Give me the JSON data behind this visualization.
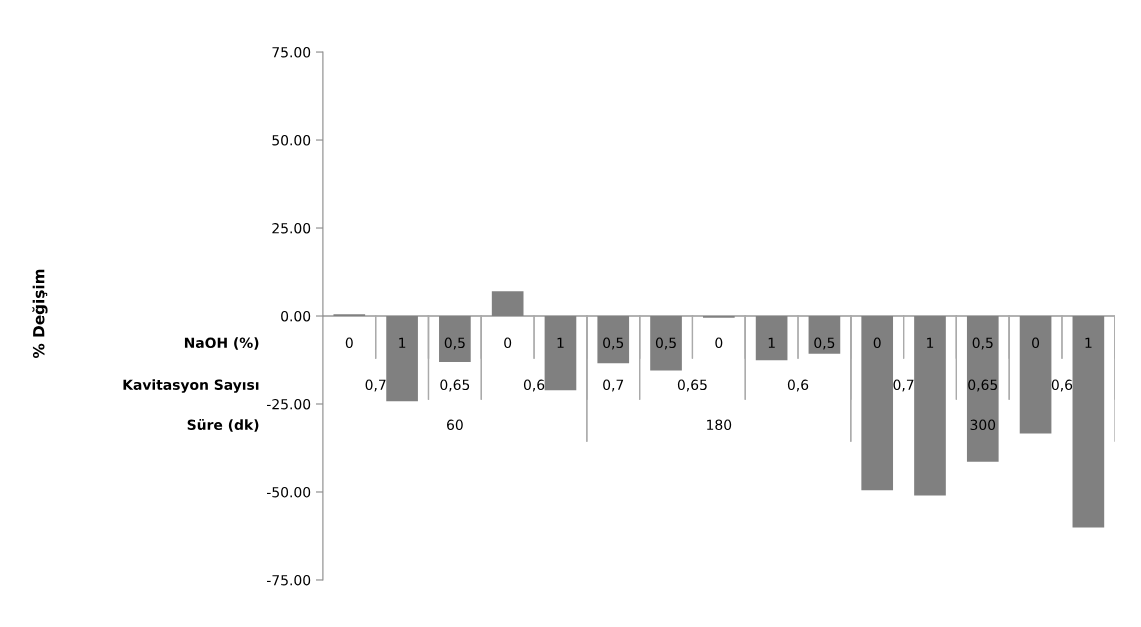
{
  "chart_data": {
    "type": "bar",
    "categories": [
      [
        "0",
        "0,7",
        "60"
      ],
      [
        "1",
        null,
        null
      ],
      [
        "0,5",
        "0,65",
        null
      ],
      [
        "0",
        "0,6",
        null
      ],
      [
        "1",
        null,
        null
      ],
      [
        "0,5",
        "0,7",
        "180"
      ],
      [
        "0,5",
        "0,65",
        null
      ],
      [
        "0",
        null,
        null
      ],
      [
        "1",
        "0,6",
        null
      ],
      [
        "0,5",
        null,
        null
      ],
      [
        "0",
        "0,7",
        "300"
      ],
      [
        "1",
        null,
        null
      ],
      [
        "0,5",
        "0,65",
        null
      ],
      [
        "0",
        "0,6",
        null
      ],
      [
        "1",
        null,
        null
      ]
    ],
    "annotations": [
      "NaOH (%)",
      "Kavitasyon Sayısı",
      "Süre (dk)",
      "% Değişim"
    ],
    "values": [
      0.5,
      -24.2,
      -13.1,
      7.0,
      -21.1,
      -13.4,
      -15.5,
      -0.5,
      -12.6,
      -10.7,
      -49.5,
      -51.0,
      -41.4,
      -33.4,
      -60.1
    ],
    "color": "#808080",
    "ylim": [
      -75,
      75
    ],
    "yticks": [
      {
        "value": -75,
        "label": "-75.00"
      },
      {
        "value": -50,
        "label": "-50.00"
      },
      {
        "value": -25,
        "label": "-25.00"
      },
      {
        "value": 0,
        "label": "0.00"
      },
      {
        "value": 25,
        "label": "25.00"
      },
      {
        "value": 50,
        "label": "50.00"
      },
      {
        "value": 75,
        "label": "75.00"
      }
    ],
    "grid": false
  }
}
